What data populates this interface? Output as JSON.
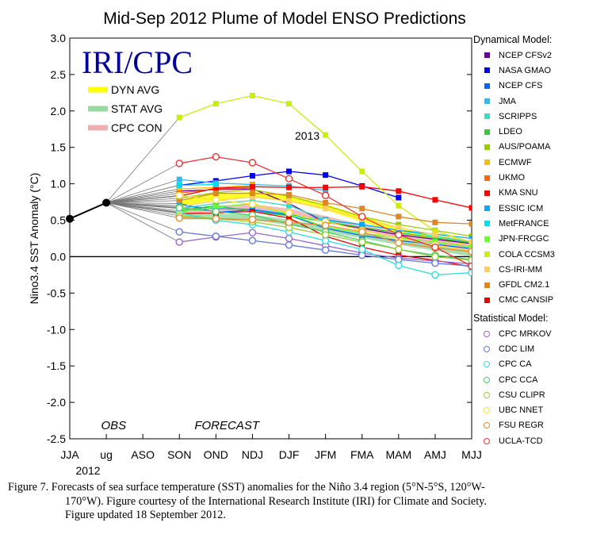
{
  "chart_data": {
    "type": "line",
    "title": "Mid-Sep 2012 Plume of Model ENSO Predictions",
    "ylabel": "Nino3.4 SST Anomaly (°C)",
    "xlabel": "",
    "ylim": [
      -2.5,
      3.0
    ],
    "yticks": [
      "3.0",
      "2.5",
      "2.0",
      "1.5",
      "1.0",
      "0.5",
      "0.0",
      "-0.5",
      "-1.0",
      "-1.5",
      "-2.0",
      "-2.5"
    ],
    "categories": [
      "JJA",
      "ug",
      "ASO",
      "SON",
      "OND",
      "NDJ",
      "DJF",
      "JFM",
      "FMA",
      "MAM",
      "AMJ",
      "MJJ"
    ],
    "year_labels": [
      "2012",
      "2013"
    ],
    "region_labels": [
      "OBS",
      "FORECAST"
    ],
    "logo_text": "IRI/CPC",
    "observed": {
      "x": [
        "JJA",
        "ug"
      ],
      "values": [
        0.52,
        0.74
      ],
      "color": "#000000"
    },
    "averages": [
      {
        "name": "DYN AVG",
        "color": "#ffff00",
        "values": [
          null,
          null,
          null,
          0.73,
          0.82,
          0.85,
          0.8,
          0.68,
          0.52,
          0.36,
          0.25,
          0.17
        ]
      },
      {
        "name": "STAT AVG",
        "color": "#99d9a0",
        "values": [
          null,
          null,
          null,
          0.55,
          0.55,
          0.54,
          0.47,
          0.38,
          0.29,
          0.2,
          0.12,
          0.04
        ]
      },
      {
        "name": "CPC CON",
        "color": "#f0b0b0",
        "values": [
          null,
          null,
          null,
          0.62,
          0.66,
          0.68,
          0.62,
          0.52,
          0.4,
          0.29,
          0.2,
          0.12
        ]
      }
    ],
    "dynamical_title": "Dynamical Model:",
    "statistical_title": "Statistical Model:",
    "series": [
      {
        "name": "NCEP CFSv2",
        "group": "dyn",
        "color": "#660099",
        "values": [
          null,
          null,
          null,
          0.9,
          0.92,
          0.93,
          0.73,
          0.47,
          0.39,
          0.3,
          0.24,
          0.18
        ]
      },
      {
        "name": "NASA GMAO",
        "group": "dyn",
        "color": "#0000ff",
        "values": [
          null,
          null,
          null,
          0.98,
          1.04,
          1.11,
          1.17,
          1.12,
          0.97,
          0.81,
          null,
          null
        ]
      },
      {
        "name": "NCEP CFS",
        "group": "dyn",
        "color": "#0066ff",
        "values": [
          null,
          null,
          null,
          0.73,
          0.61,
          0.64,
          0.57,
          0.39,
          0.29,
          0.22,
          0.17,
          0.11
        ]
      },
      {
        "name": "JMA",
        "group": "dyn",
        "color": "#33bbee",
        "values": [
          null,
          null,
          null,
          1.06,
          1.01,
          0.99,
          0.97,
          0.91,
          null,
          null,
          null,
          null
        ]
      },
      {
        "name": "SCRIPPS",
        "group": "dyn",
        "color": "#33ddcc",
        "values": [
          null,
          null,
          null,
          0.66,
          0.73,
          0.77,
          0.7,
          0.51,
          0.44,
          0.36,
          0.28,
          0.2
        ]
      },
      {
        "name": "LDEO",
        "group": "dyn",
        "color": "#33cc33",
        "values": [
          null,
          null,
          null,
          0.63,
          0.7,
          0.62,
          0.56,
          0.48,
          0.4,
          0.33,
          0.26,
          0.19
        ]
      },
      {
        "name": "AUS/POAMA",
        "group": "dyn",
        "color": "#99cc00",
        "values": [
          null,
          null,
          null,
          0.8,
          0.88,
          0.92,
          0.83,
          0.7,
          0.55,
          0.44,
          0.36,
          0.28
        ]
      },
      {
        "name": "ECMWF",
        "group": "dyn",
        "color": "#ffbb00",
        "values": [
          null,
          null,
          null,
          0.93,
          0.95,
          0.98,
          null,
          null,
          null,
          null,
          null,
          null
        ]
      },
      {
        "name": "UKMO",
        "group": "dyn",
        "color": "#ff6600",
        "values": [
          null,
          null,
          null,
          0.87,
          0.93,
          0.94,
          null,
          null,
          null,
          null,
          null,
          null
        ]
      },
      {
        "name": "KMA SNU",
        "group": "dyn",
        "color": "#ff0000",
        "values": [
          null,
          null,
          null,
          0.83,
          0.94,
          0.96,
          0.95,
          0.95,
          0.96,
          0.9,
          0.78,
          0.67
        ]
      },
      {
        "name": "ESSIC ICM",
        "group": "dyn",
        "color": "#00aaff",
        "values": [
          null,
          null,
          null,
          0.7,
          0.66,
          0.65,
          0.58,
          0.5,
          0.44,
          0.36,
          0.31,
          0.25
        ]
      },
      {
        "name": "MetFRANCE",
        "group": "dyn",
        "color": "#00ddee",
        "values": [
          null,
          null,
          null,
          0.98,
          0.99,
          null,
          null,
          null,
          null,
          null,
          null,
          null
        ]
      },
      {
        "name": "JPN-FRCGC",
        "group": "dyn",
        "color": "#66ff33",
        "values": [
          null,
          null,
          null,
          0.61,
          0.68,
          0.73,
          0.58,
          0.41,
          0.32,
          0.26,
          0.2,
          0.13
        ]
      },
      {
        "name": "COLA CCSM3",
        "group": "dyn",
        "color": "#ccee00",
        "values": [
          null,
          null,
          null,
          1.91,
          2.1,
          2.21,
          2.1,
          1.67,
          1.17,
          0.7,
          0.35,
          0.2
        ]
      },
      {
        "name": "CS-IRI-MM",
        "group": "dyn",
        "color": "#ffcc66",
        "values": [
          null,
          null,
          null,
          0.68,
          0.77,
          0.82,
          0.76,
          0.66,
          0.52,
          0.4,
          0.3,
          0.21
        ]
      },
      {
        "name": "GFDL CM2.1",
        "group": "dyn",
        "color": "#dd8822",
        "values": [
          null,
          null,
          null,
          0.77,
          0.87,
          0.87,
          0.85,
          0.74,
          0.66,
          0.55,
          0.47,
          0.45
        ]
      },
      {
        "name": "CMC CANSIP",
        "group": "dyn",
        "color": "#ee0000",
        "values": [
          null,
          null,
          null,
          0.59,
          0.6,
          0.62,
          0.53,
          0.28,
          0.13,
          0.02,
          -0.05,
          -0.14
        ]
      },
      {
        "name": "CPC MRKOV",
        "group": "stat",
        "color": "#9966cc",
        "values": [
          null,
          null,
          null,
          0.2,
          0.27,
          0.33,
          0.25,
          0.15,
          0.05,
          -0.02,
          -0.06,
          -0.1
        ]
      },
      {
        "name": "CDC LIM",
        "group": "stat",
        "color": "#6677dd",
        "values": [
          null,
          null,
          null,
          0.34,
          0.28,
          0.22,
          0.16,
          0.09,
          0.02,
          -0.04,
          -0.09,
          -0.13
        ]
      },
      {
        "name": "CPC CA",
        "group": "stat",
        "color": "#33dddd",
        "values": [
          null,
          null,
          null,
          0.6,
          0.5,
          0.44,
          0.34,
          0.22,
          0.1,
          -0.12,
          -0.25,
          -0.22
        ]
      },
      {
        "name": "CPC CCA",
        "group": "stat",
        "color": "#44cc66",
        "values": [
          null,
          null,
          null,
          0.67,
          0.62,
          0.57,
          0.45,
          0.34,
          0.22,
          0.1,
          0.02,
          -0.04
        ]
      },
      {
        "name": "CSU CLIPR",
        "group": "stat",
        "color": "#99cc33",
        "values": [
          null,
          null,
          null,
          0.56,
          0.52,
          0.48,
          0.4,
          0.3,
          0.2,
          0.1,
          0.0,
          -0.05
        ]
      },
      {
        "name": "UBC NNET",
        "group": "stat",
        "color": "#ffdd33",
        "values": [
          null,
          null,
          null,
          0.84,
          0.78,
          0.72,
          0.6,
          0.48,
          0.36,
          0.25,
          0.16,
          0.08
        ]
      },
      {
        "name": "FSU REGR",
        "group": "stat",
        "color": "#ee8833",
        "values": [
          null,
          null,
          null,
          0.53,
          0.52,
          0.51,
          0.47,
          0.43,
          0.34,
          0.19,
          0.12,
          0.07
        ]
      },
      {
        "name": "UCLA-TCD",
        "group": "stat",
        "color": "#ee3333",
        "values": [
          null,
          null,
          null,
          1.28,
          1.37,
          1.29,
          1.07,
          0.84,
          0.55,
          0.3,
          0.13,
          -0.13
        ]
      }
    ]
  },
  "caption": {
    "line1": "Figure 7. Forecasts of sea surface temperature (SST) anomalies  for the Niño 3.4 region  (5°N-5°S, 120°W-",
    "line2": "170°W).  Figure courtesy of the International Research Institute (IRI) for Climate and Society.",
    "line3": "Figure updated 18 September 2012."
  }
}
